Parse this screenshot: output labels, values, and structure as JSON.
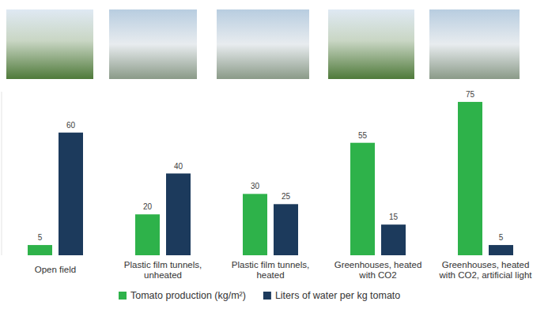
{
  "chart_data": {
    "type": "bar",
    "categories": [
      "Open field",
      "Plastic film tunnels, unheated",
      "Plastic film tunnels, heated",
      "Greenhouses, heated with CO2",
      "Greenhouses, heated with CO2, artificial light"
    ],
    "series": [
      {
        "name": "Tomato production (kg/m²)",
        "color": "#2eb24a",
        "values": [
          5,
          20,
          30,
          55,
          75
        ]
      },
      {
        "name": "Liters of water per kg tomato",
        "color": "#1c3a5c",
        "values": [
          60,
          40,
          25,
          15,
          5
        ]
      }
    ],
    "ylim": [
      0,
      80
    ],
    "tick_labels": "x",
    "data_labels": true,
    "legend": "bottom",
    "grid": false
  }
}
